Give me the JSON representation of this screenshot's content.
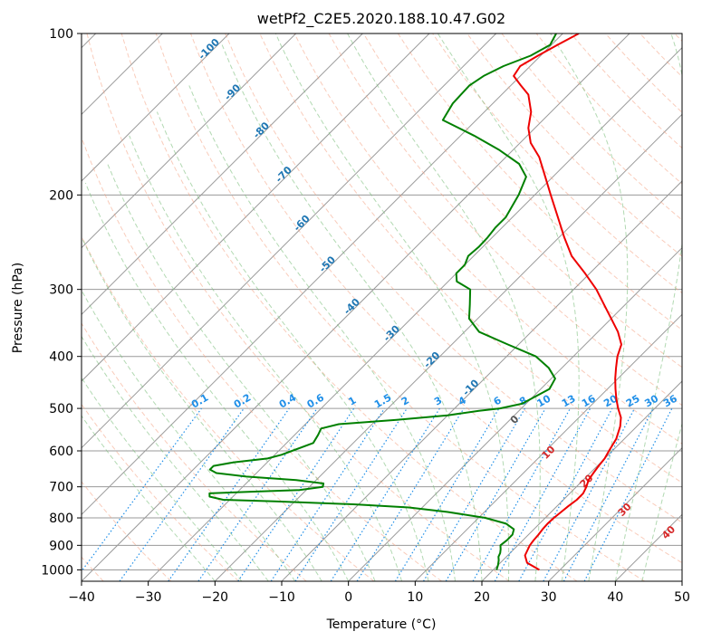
{
  "chart_data": {
    "type": "line",
    "title": "wetPf2_C2E5.2020.188.10.47.G02",
    "xlabel": "Temperature (°C)",
    "ylabel": "Pressure (hPa)",
    "xlim": [
      -40,
      50
    ],
    "ylim": [
      1050,
      100
    ],
    "y_scale": "log",
    "x_ticks": [
      -40,
      -30,
      -20,
      -10,
      0,
      10,
      20,
      30,
      40,
      50
    ],
    "y_ticks": [
      100,
      200,
      300,
      400,
      500,
      600,
      700,
      800,
      900,
      1000
    ],
    "grid": true,
    "skew": true,
    "colors": {
      "temperature": "#ee0000",
      "dewpoint": "#008000",
      "isotherm": "#9a9a9a",
      "dry_adiabat": "#f4a283",
      "moist_adiabat": "#7fbf7f",
      "mixing_ratio": "#1f8fe8",
      "adiabat_label": "#1f77b4",
      "mixing_label": "#1f8fe8",
      "moist_label": "#d62728",
      "lcl_label": "#555555"
    },
    "series": [
      {
        "key": "temperature",
        "points": [
          [
            1000,
            26.9
          ],
          [
            970,
            24.0
          ],
          [
            940,
            22.6
          ],
          [
            920,
            22.2
          ],
          [
            900,
            21.8
          ],
          [
            880,
            21.6
          ],
          [
            860,
            21.5
          ],
          [
            840,
            21.3
          ],
          [
            820,
            21.2
          ],
          [
            800,
            21.3
          ],
          [
            780,
            21.5
          ],
          [
            760,
            21.7
          ],
          [
            740,
            22.0
          ],
          [
            720,
            22.0
          ],
          [
            700,
            21.5
          ],
          [
            680,
            20.8
          ],
          [
            660,
            20.5
          ],
          [
            640,
            20.2
          ],
          [
            620,
            20.0
          ],
          [
            600,
            19.5
          ],
          [
            570,
            18.8
          ],
          [
            540,
            17.5
          ],
          [
            520,
            16.3
          ],
          [
            500,
            14.5
          ],
          [
            480,
            12.8
          ],
          [
            460,
            11.2
          ],
          [
            440,
            9.6
          ],
          [
            420,
            8.1
          ],
          [
            400,
            6.6
          ],
          [
            380,
            5.4
          ],
          [
            360,
            3.0
          ],
          [
            340,
            0.0
          ],
          [
            320,
            -3.2
          ],
          [
            300,
            -6.6
          ],
          [
            280,
            -10.7
          ],
          [
            260,
            -15.3
          ],
          [
            240,
            -19.2
          ],
          [
            220,
            -23.2
          ],
          [
            200,
            -27.6
          ],
          [
            180,
            -32.4
          ],
          [
            170,
            -35.0
          ],
          [
            160,
            -38.4
          ],
          [
            150,
            -41.0
          ],
          [
            140,
            -43.0
          ],
          [
            130,
            -46.0
          ],
          [
            125,
            -48.5
          ],
          [
            120,
            -51.0
          ],
          [
            115,
            -51.5
          ],
          [
            110,
            -50.4
          ],
          [
            105,
            -49.1
          ],
          [
            100,
            -47.6
          ]
        ]
      },
      {
        "key": "dewpoint",
        "points": [
          [
            1000,
            20.5
          ],
          [
            980,
            20.0
          ],
          [
            960,
            19.4
          ],
          [
            945,
            18.8
          ],
          [
            930,
            18.5
          ],
          [
            915,
            18.0
          ],
          [
            900,
            17.4
          ],
          [
            880,
            17.6
          ],
          [
            860,
            17.6
          ],
          [
            840,
            17.0
          ],
          [
            820,
            15.0
          ],
          [
            800,
            11.0
          ],
          [
            780,
            4.5
          ],
          [
            765,
            -2.0
          ],
          [
            755,
            -10.5
          ],
          [
            745,
            -23.0
          ],
          [
            740,
            -31.0
          ],
          [
            730,
            -33.5
          ],
          [
            720,
            -34.0
          ],
          [
            715,
            -28.0
          ],
          [
            710,
            -21.0
          ],
          [
            700,
            -18.0
          ],
          [
            690,
            -18.4
          ],
          [
            680,
            -23.0
          ],
          [
            670,
            -31.0
          ],
          [
            660,
            -36.0
          ],
          [
            650,
            -37.5
          ],
          [
            640,
            -37.5
          ],
          [
            630,
            -35.0
          ],
          [
            620,
            -30.5
          ],
          [
            610,
            -29.0
          ],
          [
            600,
            -28.0
          ],
          [
            580,
            -26.0
          ],
          [
            560,
            -26.5
          ],
          [
            545,
            -27.0
          ],
          [
            535,
            -25.0
          ],
          [
            525,
            -17.0
          ],
          [
            515,
            -10.0
          ],
          [
            505,
            -6.0
          ],
          [
            500,
            -3.2
          ],
          [
            490,
            -0.6
          ],
          [
            480,
            0.0
          ],
          [
            460,
            1.3
          ],
          [
            440,
            0.6
          ],
          [
            420,
            -2.0
          ],
          [
            400,
            -5.6
          ],
          [
            380,
            -11.6
          ],
          [
            360,
            -17.8
          ],
          [
            340,
            -21.3
          ],
          [
            320,
            -23.3
          ],
          [
            300,
            -25.5
          ],
          [
            290,
            -28.7
          ],
          [
            280,
            -30.0
          ],
          [
            270,
            -30.0
          ],
          [
            260,
            -30.8
          ],
          [
            250,
            -30.6
          ],
          [
            240,
            -30.7
          ],
          [
            230,
            -31.0
          ],
          [
            220,
            -31.0
          ],
          [
            200,
            -32.4
          ],
          [
            185,
            -34.0
          ],
          [
            175,
            -37.0
          ],
          [
            165,
            -42.0
          ],
          [
            155,
            -48.0
          ],
          [
            145,
            -55.0
          ],
          [
            135,
            -56.0
          ],
          [
            125,
            -56.2
          ],
          [
            120,
            -55.5
          ],
          [
            115,
            -54.0
          ],
          [
            110,
            -51.5
          ],
          [
            105,
            -50.2
          ],
          [
            100,
            -51.0
          ]
        ]
      }
    ],
    "isotherm_labels": [
      "-100",
      "-90",
      "-80",
      "-70",
      "-60",
      "-50",
      "-40",
      "-30",
      "-20",
      "-10",
      "0",
      "10",
      "20",
      "30",
      "40"
    ],
    "mixing_ratio_labels": [
      "0.1",
      "0.2",
      "0.4",
      "0.6",
      "1",
      "1.5",
      "2",
      "3",
      "4",
      "6",
      "8",
      "10",
      "13",
      "16",
      "20",
      "25",
      "30",
      "36"
    ]
  }
}
